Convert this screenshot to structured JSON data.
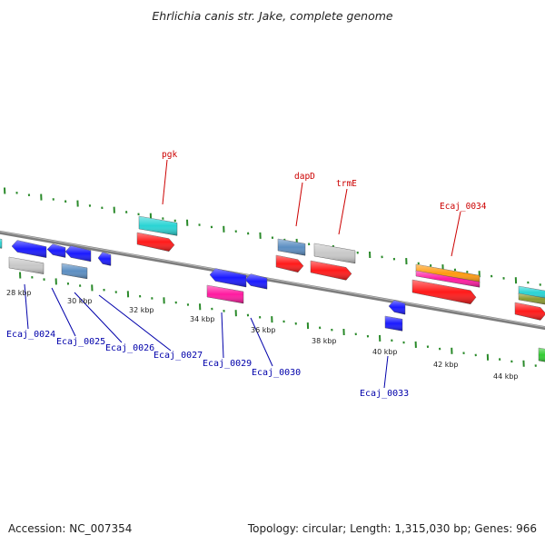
{
  "title": "Ehrlichia canis str. Jake, complete genome",
  "footer": {
    "accession": "Accession: NC_007354",
    "info": "Topology: circular; Length: 1,315,030 bp; Genes: 966"
  },
  "colors": {
    "backbone": "#8a8a8a",
    "top_label": "#cc0000",
    "bottom_label": "#0000aa",
    "tick": "#2a8a2a"
  },
  "tick_labels": [
    "28 kbp",
    "30 kbp",
    "32 kbp",
    "34 kbp",
    "36 kbp",
    "38 kbp",
    "40 kbp",
    "42 kbp",
    "44 kbp"
  ],
  "top_labels": [
    "pgk",
    "dapD",
    "trmE",
    "Ecaj_0034"
  ],
  "bottom_labels": [
    "Ecaj_0024",
    "Ecaj_0025",
    "Ecaj_0026",
    "Ecaj_0027",
    "Ecaj_0029",
    "Ecaj_0030",
    "Ecaj_0033"
  ],
  "feature_colors": {
    "cds": "#ff1a1a",
    "blue": "#1a1aff",
    "steel": "#5b8ec2",
    "grey": "#c8c8c8",
    "cyan": "#2ad4d4",
    "magenta": "#ff1aa0",
    "orange": "#ff9a10",
    "olive": "#8a9a30",
    "green": "#33cc33"
  }
}
